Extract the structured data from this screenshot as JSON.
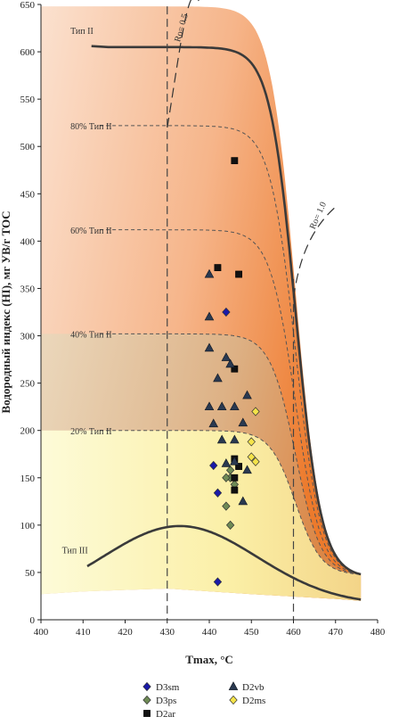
{
  "chart_data": {
    "type": "scatter",
    "title": "",
    "xlabel": "Tmax, °C",
    "ylabel": "Водородный индекс (HI), мг УВ/г TOC",
    "xlim": [
      400,
      480
    ],
    "ylim": [
      0,
      650
    ],
    "x_ticks": [
      400,
      410,
      420,
      430,
      440,
      450,
      460,
      470,
      480
    ],
    "y_ticks": [
      0,
      50,
      100,
      150,
      200,
      250,
      300,
      350,
      400,
      450,
      500,
      550,
      600,
      650
    ],
    "grid": false,
    "legend_position": "bottom",
    "curve_labels": {
      "type2": "Тип II",
      "p80": "80% Тип II",
      "p60": "60% Тип II",
      "p40": "40% Тип II",
      "p20": "20% Тип II",
      "type3": "Тип III",
      "ro05": "Ro= 0.5",
      "ro10": "Ro= 1.0"
    },
    "series": [
      {
        "name": "D3sm",
        "marker": "diamond",
        "color": "#1a1aa8",
        "points": [
          [
            444,
            325
          ],
          [
            441,
            163
          ],
          [
            442,
            134
          ],
          [
            442,
            40
          ]
        ]
      },
      {
        "name": "D3ps",
        "marker": "diamond",
        "color": "#6e8a55",
        "points": [
          [
            445,
            158
          ],
          [
            445,
            150
          ],
          [
            444,
            150
          ],
          [
            446,
            143
          ],
          [
            444,
            120
          ],
          [
            445,
            100
          ]
        ]
      },
      {
        "name": "D2ar",
        "marker": "square",
        "color": "#111111",
        "points": [
          [
            446,
            485
          ],
          [
            442,
            372
          ],
          [
            447,
            365
          ],
          [
            446,
            265
          ],
          [
            446,
            170
          ],
          [
            447,
            162
          ],
          [
            446,
            150
          ],
          [
            446,
            137
          ]
        ]
      },
      {
        "name": "D2vb",
        "marker": "triangle",
        "color": "#2a3950",
        "points": [
          [
            440,
            365
          ],
          [
            440,
            320
          ],
          [
            444,
            277
          ],
          [
            440,
            287
          ],
          [
            445,
            270
          ],
          [
            442,
            255
          ],
          [
            449,
            237
          ],
          [
            440,
            225
          ],
          [
            446,
            225
          ],
          [
            443,
            225
          ],
          [
            441,
            207
          ],
          [
            448,
            208
          ],
          [
            443,
            190
          ],
          [
            446,
            190
          ],
          [
            446,
            167
          ],
          [
            444,
            165
          ],
          [
            449,
            158
          ],
          [
            448,
            125
          ]
        ]
      },
      {
        "name": "D2ms",
        "marker": "diamond",
        "color": "#f4e34a",
        "points": [
          [
            451,
            220
          ],
          [
            450,
            188
          ],
          [
            450,
            172
          ],
          [
            451,
            167
          ]
        ]
      }
    ]
  }
}
